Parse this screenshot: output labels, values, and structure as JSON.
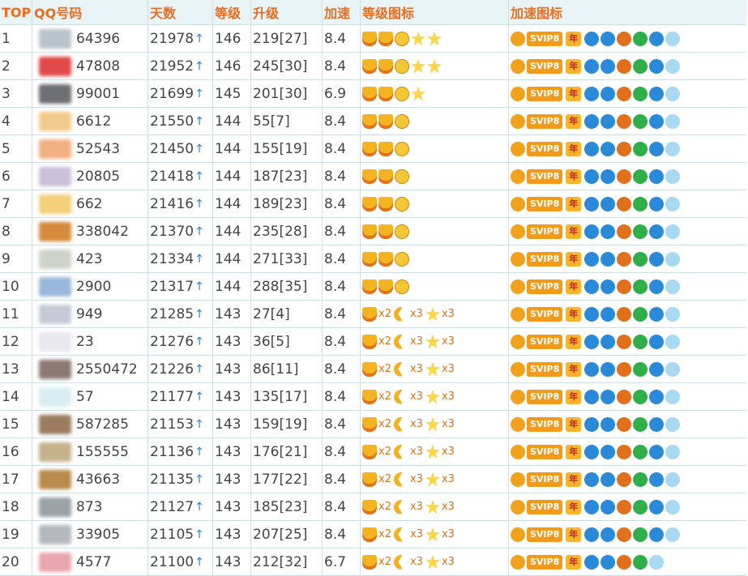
{
  "header": {
    "columns": [
      "TOP",
      "QQ号码",
      "天数",
      "等级",
      "升级",
      "加速",
      "等级图标",
      "加速图标"
    ]
  },
  "badges": {
    "svip": "SVIP8",
    "year": "年"
  },
  "rows": [
    {
      "rank": 1,
      "qq": "64396",
      "days": 21978,
      "level": 146,
      "upgrade": "219[27]",
      "speed": 8.4
    },
    {
      "rank": 2,
      "qq": "47808",
      "days": 21952,
      "level": 146,
      "upgrade": "245[30]",
      "speed": 8.4
    },
    {
      "rank": 3,
      "qq": "99001",
      "days": 21699,
      "level": 145,
      "upgrade": "201[30]",
      "speed": 6.9
    },
    {
      "rank": 4,
      "qq": "6612",
      "days": 21550,
      "level": 144,
      "upgrade": "55[7]",
      "speed": 8.4
    },
    {
      "rank": 5,
      "qq": "52543",
      "days": 21450,
      "level": 144,
      "upgrade": "155[19]",
      "speed": 8.4
    },
    {
      "rank": 6,
      "qq": "20805",
      "days": 21418,
      "level": 144,
      "upgrade": "187[23]",
      "speed": 8.4
    },
    {
      "rank": 7,
      "qq": "662",
      "days": 21416,
      "level": 144,
      "upgrade": "189[23]",
      "speed": 8.4
    },
    {
      "rank": 8,
      "qq": "338042",
      "days": 21370,
      "level": 144,
      "upgrade": "235[28]",
      "speed": 8.4
    },
    {
      "rank": 9,
      "qq": "423",
      "days": 21334,
      "level": 144,
      "upgrade": "271[33]",
      "speed": 8.4
    },
    {
      "rank": 10,
      "qq": "2900",
      "days": 21317,
      "level": 144,
      "upgrade": "288[35]",
      "speed": 8.4
    },
    {
      "rank": 11,
      "qq": "949",
      "days": 21285,
      "level": 143,
      "upgrade": "27[4]",
      "speed": 8.4,
      "icon_counts": [
        "x2",
        "x3",
        "x3"
      ]
    },
    {
      "rank": 12,
      "qq": "23",
      "days": 21276,
      "level": 143,
      "upgrade": "36[5]",
      "speed": 8.4,
      "icon_counts": [
        "x2",
        "x3",
        "x3"
      ]
    },
    {
      "rank": 13,
      "qq": "2550472",
      "days": 21226,
      "level": 143,
      "upgrade": "86[11]",
      "speed": 8.4,
      "icon_counts": [
        "x2",
        "x3",
        "x3"
      ]
    },
    {
      "rank": 14,
      "qq": "57",
      "days": 21177,
      "level": 143,
      "upgrade": "135[17]",
      "speed": 8.4,
      "icon_counts": [
        "x2",
        "x3",
        "x3"
      ]
    },
    {
      "rank": 15,
      "qq": "587285",
      "days": 21153,
      "level": 143,
      "upgrade": "159[19]",
      "speed": 8.4,
      "icon_counts": [
        "x2",
        "x3",
        "x3"
      ]
    },
    {
      "rank": 16,
      "qq": "155555",
      "days": 21136,
      "level": 143,
      "upgrade": "176[21]",
      "speed": 8.4,
      "icon_counts": [
        "x2",
        "x3",
        "x3"
      ]
    },
    {
      "rank": 17,
      "qq": "43663",
      "days": 21135,
      "level": 143,
      "upgrade": "177[22]",
      "speed": 8.4,
      "icon_counts": [
        "x2",
        "x3",
        "x3"
      ]
    },
    {
      "rank": 18,
      "qq": "873",
      "days": 21127,
      "level": 143,
      "upgrade": "185[23]",
      "speed": 8.4,
      "icon_counts": [
        "x2",
        "x3",
        "x3"
      ]
    },
    {
      "rank": 19,
      "qq": "33905",
      "days": 21105,
      "level": 143,
      "upgrade": "207[25]",
      "speed": 8.4,
      "icon_counts": [
        "x2",
        "x3",
        "x3"
      ]
    },
    {
      "rank": 20,
      "qq": "4577",
      "days": 21100,
      "level": 143,
      "upgrade": "212[32]",
      "speed": 6.7,
      "icon_counts": [
        "x2",
        "x3",
        "x3"
      ]
    }
  ]
}
